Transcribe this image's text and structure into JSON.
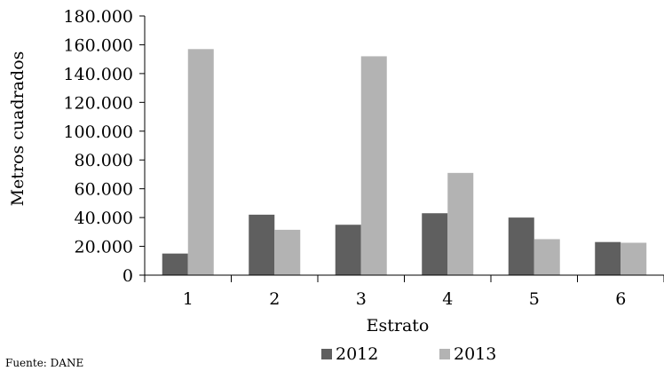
{
  "chart_data": {
    "type": "bar",
    "title": "",
    "xlabel": "Estrato",
    "ylabel": "Metros cuadrados",
    "categories": [
      "1",
      "2",
      "3",
      "4",
      "5",
      "6"
    ],
    "series": [
      {
        "name": "2012",
        "color": "#5f5f5f",
        "values": [
          15000,
          42000,
          35000,
          43000,
          40000,
          23000
        ]
      },
      {
        "name": "2013",
        "color": "#b3b3b3",
        "values": [
          157000,
          31500,
          152000,
          71000,
          25000,
          22500
        ]
      }
    ],
    "ylim": [
      0,
      180000
    ],
    "y_ticks": [
      0,
      20000,
      40000,
      60000,
      80000,
      100000,
      120000,
      140000,
      160000,
      180000
    ],
    "y_tick_labels": [
      "0",
      "20.000",
      "40.000",
      "60.000",
      "80.000",
      "100.000",
      "120.000",
      "140.000",
      "160.000",
      "180.000"
    ],
    "grid": false,
    "legend_position": "bottom"
  },
  "source_note": "Fuente: DANE"
}
